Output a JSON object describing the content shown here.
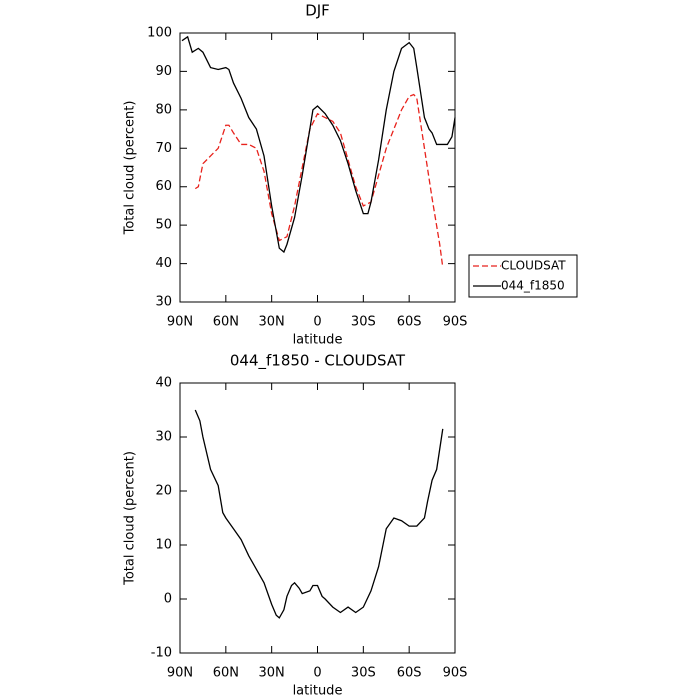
{
  "chart_data": [
    {
      "type": "line",
      "title": "DJF",
      "xlabel": "latitude",
      "ylabel": "Total cloud (percent)",
      "xlim": [
        90,
        -90
      ],
      "xticks": [
        {
          "value": 90,
          "label": "90N"
        },
        {
          "value": 60,
          "label": "60N"
        },
        {
          "value": 30,
          "label": "30N"
        },
        0,
        {
          "value": -30,
          "label": "30S"
        },
        {
          "value": -60,
          "label": "60S"
        },
        {
          "value": -90,
          "label": "90S"
        }
      ],
      "ylim": [
        30,
        100
      ],
      "yticks": [
        30,
        40,
        50,
        60,
        70,
        80,
        90,
        100
      ],
      "legend": "right",
      "series": [
        {
          "name": "CLOUDSAT",
          "color": "#e8221c",
          "dash": true,
          "x": [
            80,
            78,
            75,
            70,
            65,
            60,
            58,
            55,
            50,
            45,
            40,
            35,
            30,
            25,
            20,
            15,
            10,
            5,
            0,
            -5,
            -10,
            -15,
            -20,
            -25,
            -30,
            -35,
            -40,
            -45,
            -50,
            -55,
            -60,
            -63,
            -65,
            -70,
            -75,
            -80,
            -82
          ],
          "values": [
            59.5,
            60,
            66,
            68,
            70,
            76,
            76,
            74,
            71,
            71,
            70,
            64,
            53,
            46,
            47,
            55,
            65,
            75,
            79,
            78,
            77,
            74,
            67,
            60,
            55,
            56,
            63,
            70,
            75,
            80,
            83.5,
            84,
            83,
            70,
            57,
            45,
            39
          ]
        },
        {
          "name": "044_f1850",
          "color": "#000000",
          "dash": false,
          "x": [
            88.7,
            85,
            82,
            78,
            75,
            70,
            65,
            60,
            58,
            55,
            50,
            45,
            40,
            35,
            30,
            25,
            22,
            20,
            15,
            10,
            5,
            3,
            0,
            -5,
            -10,
            -15,
            -20,
            -25,
            -30,
            -33,
            -35,
            -40,
            -45,
            -50,
            -55,
            -60,
            -63,
            -65,
            -70,
            -73,
            -75,
            -78,
            -85,
            -88,
            -90
          ],
          "values": [
            98,
            99,
            95,
            96,
            95,
            91,
            90.5,
            91,
            90.5,
            87,
            83,
            78,
            75,
            68,
            55,
            44,
            43,
            45,
            52,
            63,
            75,
            80,
            81,
            79,
            76,
            72,
            66,
            59,
            53,
            53,
            56,
            67,
            80,
            90,
            96,
            97.5,
            96,
            91,
            78,
            75,
            74,
            71,
            71,
            73,
            78
          ]
        }
      ]
    },
    {
      "type": "line",
      "title": "044_f1850 - CLOUDSAT",
      "xlabel": "latitude",
      "ylabel": "Total cloud (percent)",
      "xlim": [
        90,
        -90
      ],
      "xticks": [
        {
          "value": 90,
          "label": "90N"
        },
        {
          "value": 60,
          "label": "60N"
        },
        {
          "value": 30,
          "label": "30N"
        },
        0,
        {
          "value": -30,
          "label": "30S"
        },
        {
          "value": -60,
          "label": "60S"
        },
        {
          "value": -90,
          "label": "90S"
        }
      ],
      "ylim": [
        -10,
        40
      ],
      "yticks": [
        -10,
        0,
        10,
        20,
        30,
        40
      ],
      "color": "#000000",
      "x": [
        80,
        77,
        75,
        70,
        65,
        62,
        60,
        55,
        50,
        45,
        40,
        35,
        30,
        27,
        25,
        22,
        20,
        17,
        15,
        12,
        10,
        5,
        3,
        0,
        -3,
        -5,
        -10,
        -15,
        -20,
        -25,
        -30,
        -35,
        -40,
        -45,
        -50,
        -55,
        -60,
        -65,
        -70,
        -72,
        -75,
        -78,
        -82
      ],
      "values": [
        35,
        33,
        30,
        24,
        21,
        16,
        15,
        13,
        11,
        8,
        5.5,
        3,
        -1,
        -3,
        -3.5,
        -2,
        0.5,
        2.5,
        3,
        2,
        1,
        1.5,
        2.5,
        2.5,
        0.5,
        0,
        -1.5,
        -2.5,
        -1.5,
        -2.5,
        -1.5,
        1.5,
        6,
        13,
        15,
        14.5,
        13.5,
        13.5,
        15,
        18,
        22,
        24,
        31.5
      ]
    }
  ]
}
